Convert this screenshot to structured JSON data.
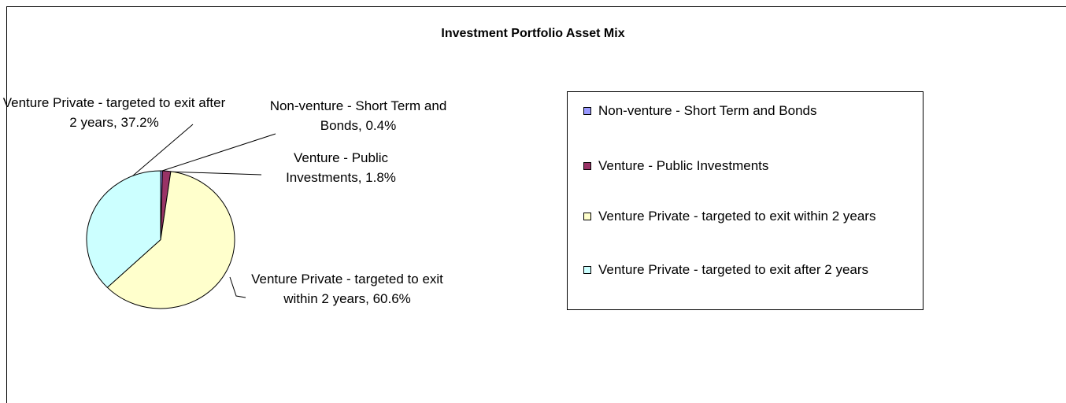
{
  "chart_data": {
    "type": "pie",
    "title": "Investment Portfolio Asset Mix",
    "categories": [
      "Non-venture - Short Term and Bonds",
      "Venture - Public Investments",
      "Venture Private - targeted to exit within 2 years",
      "Venture Private - targeted to exit after 2 years"
    ],
    "values": [
      0.4,
      1.8,
      60.6,
      37.2
    ],
    "value_labels": [
      "Non-venture - Short Term and Bonds, 0.4%",
      "Venture - Public Investments, 1.8%",
      "Venture Private - targeted to exit within 2 years, 60.6%",
      "Venture Private - targeted to exit after 2 years, 37.2%"
    ],
    "colors": [
      "#9999ff",
      "#993366",
      "#ffffcc",
      "#ccffff"
    ],
    "legend": "right"
  }
}
